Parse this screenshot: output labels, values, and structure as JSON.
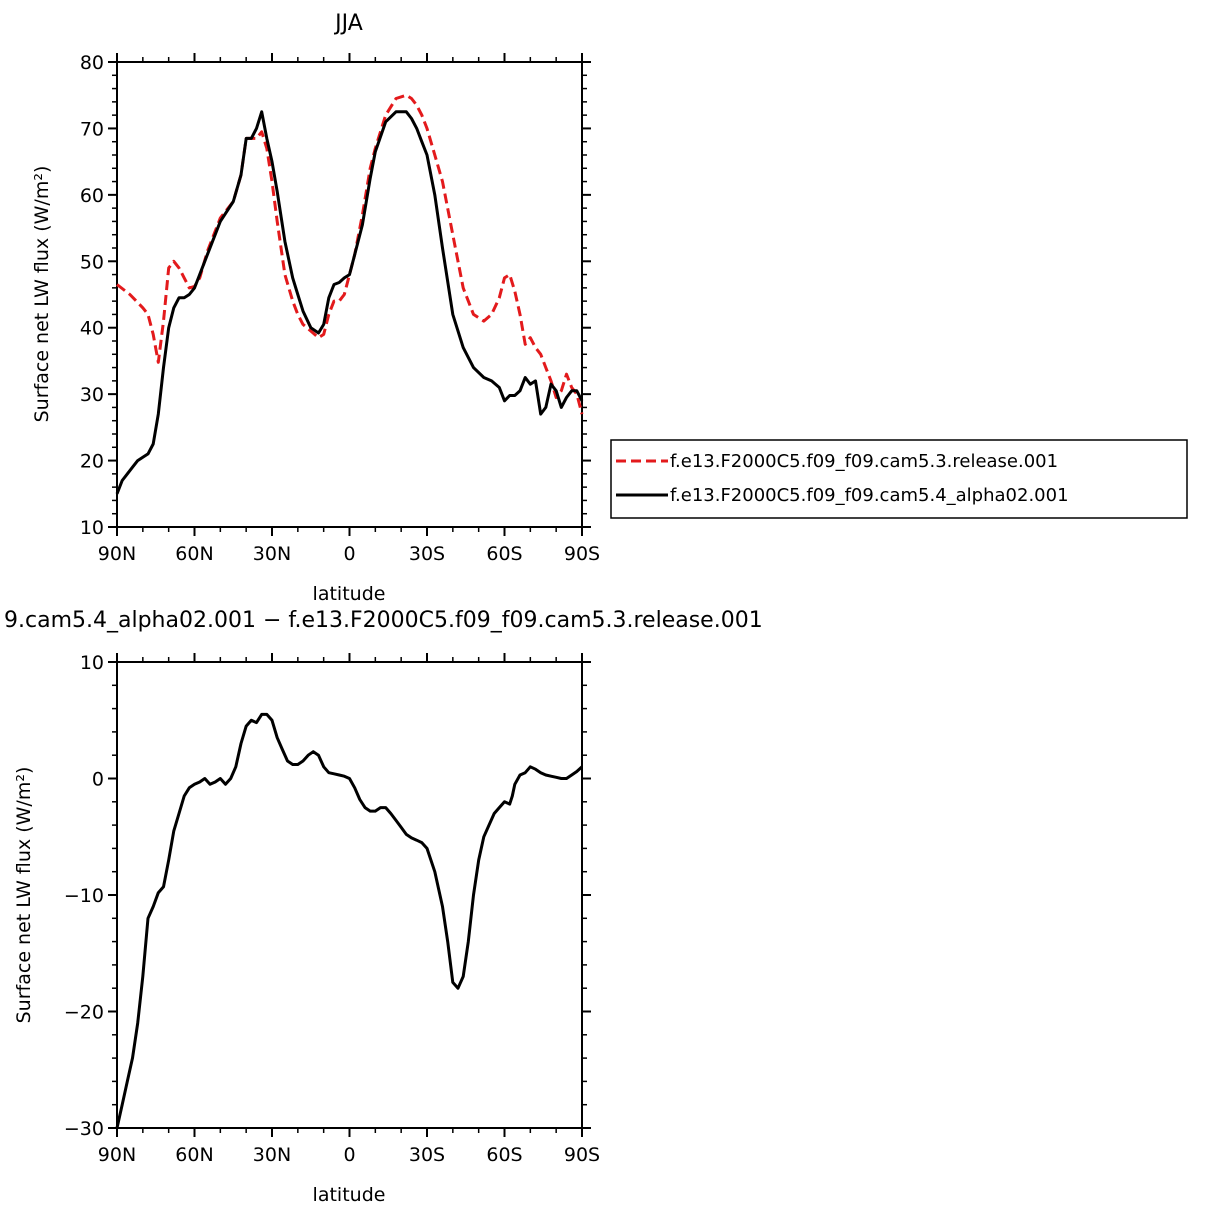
{
  "chart_data": [
    {
      "type": "line",
      "title": "JJA",
      "xlabel": "latitude",
      "ylabel": "Surface net LW flux (W/m²)",
      "xlim": [
        90,
        -90
      ],
      "ylim": [
        10,
        80
      ],
      "x_ticks": [
        90,
        60,
        30,
        0,
        -30,
        -60,
        -90
      ],
      "x_tick_labels": [
        "90N",
        "60N",
        "30N",
        "0",
        "30S",
        "60S",
        "90S"
      ],
      "y_ticks": [
        10,
        20,
        30,
        40,
        50,
        60,
        70,
        80
      ],
      "y_tick_labels": [
        "10",
        "20",
        "30",
        "40",
        "50",
        "60",
        "70",
        "80"
      ],
      "legend": {
        "placement": "right",
        "entries": [
          "f.e13.F2000C5.f09_f09.cam5.3.release.001",
          "f.e13.F2000C5.f09_f09.cam5.4_alpha02.001"
        ]
      },
      "series": [
        {
          "name": "f.e13.F2000C5.f09_f09.cam5.3.release.001",
          "color": "#e31a1c",
          "dash": true,
          "x": [
            90,
            85,
            80,
            78,
            76,
            74,
            72,
            70,
            68,
            66,
            64,
            62,
            60,
            58,
            55,
            50,
            45,
            42,
            40,
            38,
            36,
            34,
            32,
            30,
            28,
            25,
            22,
            20,
            18,
            15,
            12,
            10,
            8,
            6,
            4,
            2,
            0,
            -2,
            -5,
            -8,
            -10,
            -14,
            -18,
            -22,
            -24,
            -26,
            -28,
            -30,
            -33,
            -36,
            -40,
            -44,
            -48,
            -52,
            -55,
            -58,
            -60,
            -62,
            -64,
            -66,
            -68,
            -70,
            -72,
            -74,
            -76,
            -78,
            -80,
            -82,
            -84,
            -86,
            -88,
            -90
          ],
          "y": [
            46.5,
            45,
            43,
            42,
            39,
            34.8,
            41,
            49,
            50,
            49,
            47.5,
            46,
            46.2,
            47.5,
            51.5,
            56.5,
            59,
            63,
            68.5,
            68.5,
            68.5,
            69.5,
            67,
            62,
            56,
            48,
            44,
            42,
            40.5,
            39.5,
            38.5,
            39,
            42,
            44,
            44,
            45,
            48,
            51,
            57,
            64,
            67,
            72,
            74.5,
            75,
            74.5,
            73.5,
            72,
            70,
            66,
            62,
            54,
            46,
            42,
            41,
            42,
            44.5,
            47.5,
            48,
            45.5,
            42,
            37.5,
            38.5,
            37,
            36,
            34,
            32,
            29.5,
            30.5,
            33,
            31,
            30,
            27
          ]
        },
        {
          "name": "f.e13.F2000C5.f09_f09.cam5.4_alpha02.001",
          "color": "#000000",
          "dash": false,
          "x": [
            90,
            88,
            86,
            84,
            82,
            80,
            78,
            76,
            74,
            72,
            70,
            68,
            66,
            64,
            62,
            60,
            58,
            55,
            50,
            45,
            42,
            40,
            38,
            36,
            34,
            32,
            30,
            28,
            25,
            22,
            20,
            18,
            15,
            12,
            10,
            8,
            6,
            4,
            2,
            0,
            -2,
            -5,
            -8,
            -10,
            -14,
            -18,
            -22,
            -24,
            -26,
            -28,
            -30,
            -33,
            -36,
            -40,
            -44,
            -48,
            -52,
            -55,
            -58,
            -60,
            -62,
            -64,
            -66,
            -68,
            -70,
            -72,
            -74,
            -76,
            -78,
            -80,
            -82,
            -84,
            -86,
            -88,
            -90
          ],
          "y": [
            15,
            17,
            18,
            19,
            20,
            20.5,
            21,
            22.5,
            27,
            34,
            40,
            43,
            44.5,
            44.5,
            45,
            46,
            48,
            51,
            56,
            59,
            63,
            68.5,
            68.5,
            70,
            72.5,
            68.5,
            65,
            60.5,
            53,
            47.5,
            45,
            42.5,
            40,
            39.2,
            40.5,
            44.5,
            46.5,
            46.8,
            47.5,
            48,
            51,
            55.5,
            62.5,
            66.5,
            71,
            72.5,
            72.5,
            71.5,
            70,
            68,
            66,
            60,
            52,
            42,
            37,
            34,
            32.5,
            32,
            31,
            29,
            29.8,
            29.8,
            30.5,
            32.5,
            31.5,
            32,
            27,
            28,
            31.5,
            30.5,
            28,
            29.5,
            30.5,
            30.5,
            29
          ]
        }
      ]
    },
    {
      "type": "line",
      "title": "9.cam5.4_alpha02.001 − f.e13.F2000C5.f09_f09.cam5.3.release.001",
      "xlabel": "latitude",
      "ylabel": "Surface net LW flux (W/m²)",
      "xlim": [
        90,
        -90
      ],
      "ylim": [
        -30,
        10
      ],
      "x_ticks": [
        90,
        60,
        30,
        0,
        -30,
        -60,
        -90
      ],
      "x_tick_labels": [
        "90N",
        "60N",
        "30N",
        "0",
        "30S",
        "60S",
        "90S"
      ],
      "y_ticks": [
        -30,
        -20,
        -10,
        0,
        10
      ],
      "y_tick_labels": [
        "−30",
        "−20",
        "−10",
        "0",
        "10"
      ],
      "series": [
        {
          "color": "#000000",
          "dash": false,
          "x": [
            90,
            88,
            86,
            84,
            82,
            80,
            78,
            76,
            74,
            72,
            70,
            68,
            66,
            64,
            62,
            60,
            58,
            56,
            54,
            52,
            50,
            48,
            46,
            44,
            42,
            40,
            38,
            36,
            34,
            32,
            30,
            28,
            26,
            24,
            22,
            20,
            18,
            16,
            14,
            12,
            10,
            8,
            6,
            4,
            2,
            0,
            -2,
            -4,
            -6,
            -8,
            -10,
            -12,
            -14,
            -16,
            -18,
            -20,
            -22,
            -24,
            -26,
            -28,
            -30,
            -33,
            -36,
            -38,
            -40,
            -42,
            -44,
            -46,
            -48,
            -50,
            -52,
            -54,
            -56,
            -58,
            -60,
            -62,
            -63,
            -64,
            -66,
            -68,
            -70,
            -72,
            -74,
            -76,
            -78,
            -80,
            -82,
            -84,
            -86,
            -88,
            -90
          ],
          "y": [
            -30,
            -28,
            -26,
            -24,
            -21,
            -17,
            -12,
            -11,
            -9.8,
            -9.3,
            -7,
            -4.5,
            -3,
            -1.5,
            -0.8,
            -0.5,
            -0.3,
            0,
            -0.5,
            -0.3,
            0,
            -0.5,
            0,
            1,
            3,
            4.5,
            5,
            4.8,
            5.5,
            5.5,
            5,
            3.5,
            2.5,
            1.5,
            1.2,
            1.2,
            1.5,
            2,
            2.3,
            2,
            1,
            0.5,
            0.4,
            0.3,
            0.2,
            0,
            -0.8,
            -1.8,
            -2.5,
            -2.8,
            -2.8,
            -2.5,
            -2.5,
            -3,
            -3.6,
            -4.2,
            -4.8,
            -5.1,
            -5.3,
            -5.5,
            -6,
            -8,
            -11,
            -14,
            -17.5,
            -18,
            -17,
            -14,
            -10,
            -7,
            -5,
            -4,
            -3,
            -2.5,
            -2,
            -2.2,
            -1.5,
            -0.5,
            0.3,
            0.5,
            1,
            0.8,
            0.5,
            0.3,
            0.2,
            0.1,
            0,
            0,
            0.3,
            0.6,
            1
          ]
        }
      ]
    }
  ]
}
